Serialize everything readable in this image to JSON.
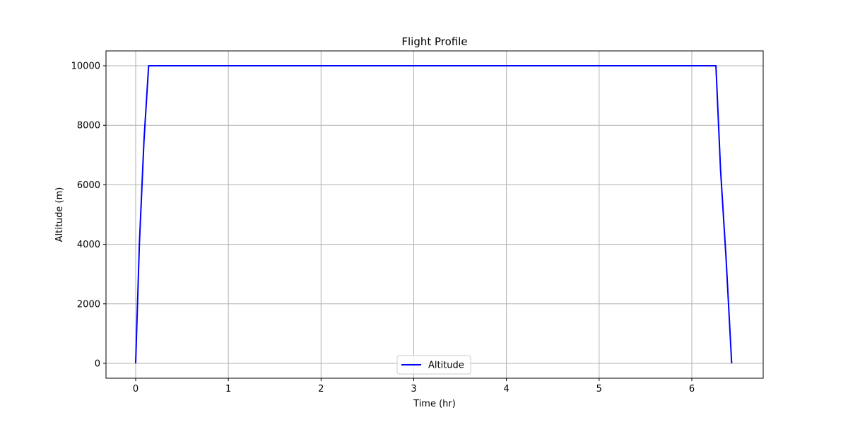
{
  "chart_data": {
    "type": "line",
    "title": "Flight Profile",
    "xlabel": "Time (hr)",
    "ylabel": "Altitude (m)",
    "xlim": [
      -0.32,
      6.77
    ],
    "ylim": [
      -500,
      10500
    ],
    "xticks": [
      0,
      1,
      2,
      3,
      4,
      5,
      6
    ],
    "yticks": [
      0,
      2000,
      4000,
      6000,
      8000,
      10000
    ],
    "grid": true,
    "legend_position": "lower center",
    "series": [
      {
        "name": "Altitude",
        "color": "#0000ff",
        "x": [
          0,
          0.04,
          0.09,
          0.14,
          6.26,
          6.31,
          6.37,
          6.43
        ],
        "y": [
          0,
          4000,
          7500,
          10000,
          10000,
          6500,
          3500,
          0
        ]
      }
    ]
  }
}
